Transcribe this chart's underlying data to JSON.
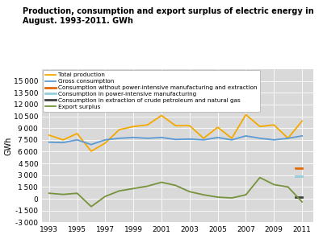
{
  "title": "Production, consumption and export surplus of electric energy in\nAugust. 1993-2011. GWh",
  "ylabel": "GWh",
  "years": [
    1993,
    1994,
    1995,
    1996,
    1997,
    1998,
    1999,
    2000,
    2001,
    2002,
    2003,
    2004,
    2005,
    2006,
    2007,
    2008,
    2009,
    2010,
    2011
  ],
  "total_production": [
    8100,
    7500,
    8300,
    6050,
    7100,
    8800,
    9200,
    9400,
    10600,
    9300,
    9300,
    7700,
    9100,
    7700,
    10700,
    9200,
    9400,
    7700,
    9900
  ],
  "gross_consumption": [
    7200,
    7150,
    7500,
    6900,
    7500,
    7700,
    7800,
    7700,
    7800,
    7550,
    7600,
    7500,
    7800,
    7500,
    8000,
    7700,
    7500,
    7700,
    8000
  ],
  "consumption_wo_power": 3900,
  "consumption_power_intensive": 2900,
  "consumption_extraction": 200,
  "export_surplus": [
    700,
    550,
    700,
    -1000,
    300,
    1000,
    1300,
    1600,
    2100,
    1700,
    900,
    500,
    200,
    100,
    500,
    2700,
    1800,
    1500,
    -400
  ],
  "colors": {
    "total_production": "#f5a800",
    "gross_consumption": "#5b9bd5",
    "consumption_wo_power": "#e36c09",
    "consumption_power_intensive": "#92cddc",
    "consumption_extraction": "#404040",
    "export_surplus": "#76933c"
  },
  "ylim": [
    -3000,
    16500
  ],
  "yticks": [
    -3000,
    -1500,
    0,
    1500,
    3000,
    4500,
    6000,
    7500,
    9000,
    10500,
    12000,
    13500,
    15000
  ],
  "background_color": "#d9d9d9",
  "legend_labels": [
    "Total production",
    "Gross consumption",
    "Consumption without power-intensive manufacturing and extraction",
    "Consumption in power-intensive manufacturing",
    "Consumption in extraction of crude petroleum and natural gas",
    "Export surplus"
  ]
}
